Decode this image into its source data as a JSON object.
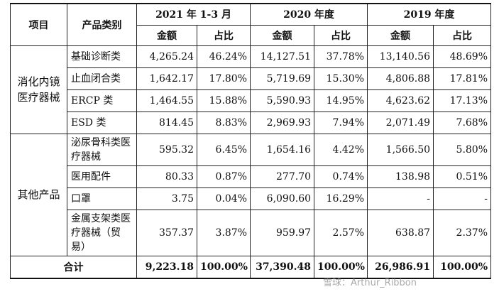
{
  "header": {
    "project": "项目",
    "category": "产品类别",
    "periods": [
      "2021 年 1-3 月",
      "2020 年度",
      "2019 年度"
    ],
    "amount": "金额",
    "ratio": "占比"
  },
  "groups": [
    {
      "name": "消化内镜医疗器械",
      "rows": [
        {
          "category": "基础诊断类",
          "values": [
            "4,265.24",
            "46.24%",
            "14,127.51",
            "37.78%",
            "13,140.56",
            "48.69%"
          ]
        },
        {
          "category": "止血闭合类",
          "values": [
            "1,642.17",
            "17.80%",
            "5,719.69",
            "15.30%",
            "4,806.88",
            "17.81%"
          ]
        },
        {
          "category": "ERCP 类",
          "values": [
            "1,464.55",
            "15.88%",
            "5,590.93",
            "14.95%",
            "4,623.62",
            "17.13%"
          ]
        },
        {
          "category": "ESD 类",
          "values": [
            "814.45",
            "8.83%",
            "2,969.93",
            "7.94%",
            "2,071.49",
            "7.68%"
          ]
        }
      ]
    },
    {
      "name": "其他产品",
      "rows": [
        {
          "category": "泌尿骨科类医疗器械",
          "values": [
            "595.32",
            "6.45%",
            "1,654.16",
            "4.42%",
            "1,566.50",
            "5.80%"
          ]
        },
        {
          "category": "医用配件",
          "values": [
            "80.33",
            "0.87%",
            "277.70",
            "0.74%",
            "138.98",
            "0.51%"
          ]
        },
        {
          "category": "口罩",
          "values": [
            "3.75",
            "0.04%",
            "6,090.60",
            "16.29%",
            "-",
            "-"
          ]
        },
        {
          "category": "金属支架类医疗器械（贸易）",
          "values": [
            "357.37",
            "3.87%",
            "959.97",
            "2.57%",
            "638.87",
            "2.37%"
          ]
        }
      ]
    }
  ],
  "total": {
    "label": "合计",
    "values": [
      "9,223.18",
      "100.00%",
      "37,390.48",
      "100.00%",
      "26,986.91",
      "100.00%"
    ]
  },
  "watermark": "雪球：Arthur_Ribbon"
}
